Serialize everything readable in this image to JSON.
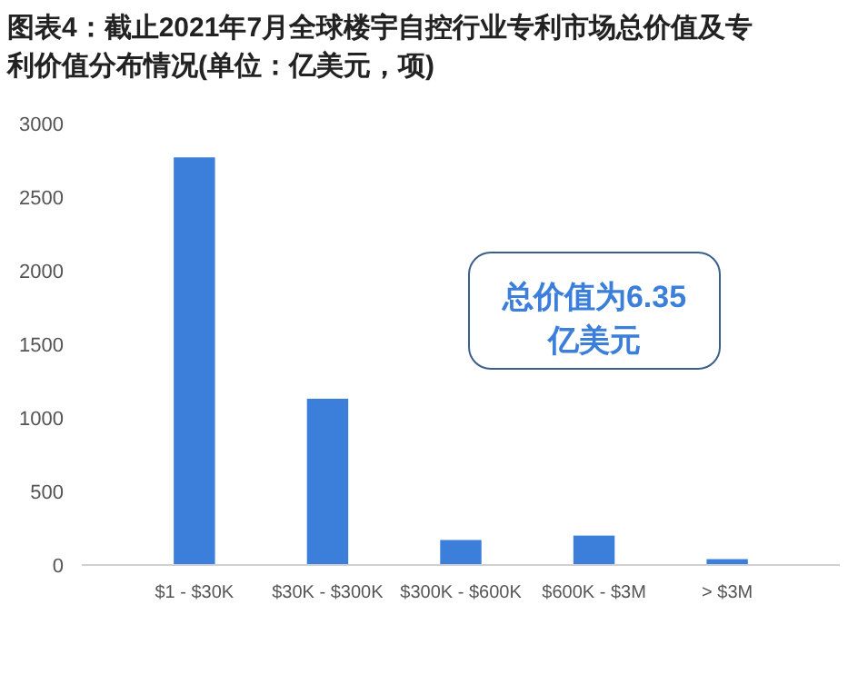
{
  "chart_data": {
    "type": "bar",
    "title": "图表4：截止2021年7月全球楼宇自控行业专利市场总价值及专利价值分布情况(单位：亿美元，项)",
    "categories": [
      "$1 - $30K",
      "$30K - $300K",
      "$300K - $600K",
      "$600K - $3M",
      "> $3M"
    ],
    "values": [
      2770,
      1130,
      170,
      200,
      40
    ],
    "color": "#3b7fda",
    "ylim": [
      0,
      3000
    ],
    "yticks": [
      0,
      500,
      1000,
      1500,
      2000,
      2500,
      3000
    ],
    "annotations": [
      "总价值为6.35亿美元"
    ]
  }
}
